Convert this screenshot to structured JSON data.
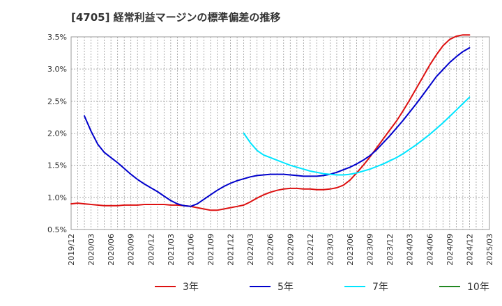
{
  "title": "[4705]  経常利益マージンの標準偏差の推移",
  "chart_data": {
    "type": "line",
    "title": "[4705]  経常利益マージンの標準偏差の推移",
    "xlabel": "",
    "ylabel": "",
    "ylim": [
      0.5,
      3.5
    ],
    "yticks": [
      "0.5%",
      "1.0%",
      "1.5%",
      "2.0%",
      "2.5%",
      "3.0%",
      "3.5%"
    ],
    "xticks": [
      "2019/12",
      "2020/03",
      "2020/06",
      "2020/09",
      "2020/12",
      "2021/03",
      "2021/06",
      "2021/09",
      "2021/12",
      "2022/03",
      "2022/06",
      "2022/09",
      "2022/12",
      "2023/03",
      "2023/06",
      "2023/09",
      "2023/12",
      "2024/03",
      "2024/06",
      "2024/09",
      "2024/12",
      "2025/03"
    ],
    "grid": true,
    "legend_position": "bottom",
    "series": [
      {
        "name": "3年",
        "color": "#dd1111",
        "x": [
          "2019/12",
          "2020/01",
          "2020/02",
          "2020/03",
          "2020/04",
          "2020/05",
          "2020/06",
          "2020/07",
          "2020/08",
          "2020/09",
          "2020/10",
          "2020/11",
          "2020/12",
          "2021/01",
          "2021/02",
          "2021/03",
          "2021/04",
          "2021/05",
          "2021/06",
          "2021/07",
          "2021/08",
          "2021/09",
          "2021/10",
          "2021/11",
          "2021/12",
          "2022/01",
          "2022/02",
          "2022/03",
          "2022/04",
          "2022/05",
          "2022/06",
          "2022/07",
          "2022/08",
          "2022/09",
          "2022/10",
          "2022/11",
          "2022/12",
          "2023/01",
          "2023/02",
          "2023/03",
          "2023/04",
          "2023/05",
          "2023/06",
          "2023/07",
          "2023/08",
          "2023/09",
          "2023/10",
          "2023/11",
          "2023/12",
          "2024/01",
          "2024/02",
          "2024/03",
          "2024/04",
          "2024/05",
          "2024/06",
          "2024/07",
          "2024/08",
          "2024/09",
          "2024/10",
          "2024/11",
          "2024/12"
        ],
        "values": [
          0.9,
          0.91,
          0.9,
          0.89,
          0.88,
          0.87,
          0.87,
          0.87,
          0.88,
          0.88,
          0.88,
          0.89,
          0.89,
          0.89,
          0.89,
          0.88,
          0.88,
          0.87,
          0.86,
          0.84,
          0.82,
          0.8,
          0.8,
          0.82,
          0.84,
          0.86,
          0.88,
          0.93,
          0.99,
          1.04,
          1.08,
          1.11,
          1.13,
          1.14,
          1.14,
          1.13,
          1.13,
          1.12,
          1.12,
          1.13,
          1.15,
          1.19,
          1.27,
          1.38,
          1.5,
          1.63,
          1.77,
          1.91,
          2.05,
          2.19,
          2.35,
          2.52,
          2.7,
          2.88,
          3.06,
          3.22,
          3.36,
          3.46,
          3.51,
          3.53,
          3.53
        ]
      },
      {
        "name": "5年",
        "color": "#0000cc",
        "x": [
          "2020/02",
          "2020/03",
          "2020/04",
          "2020/05",
          "2020/06",
          "2020/07",
          "2020/08",
          "2020/09",
          "2020/10",
          "2020/11",
          "2020/12",
          "2021/01",
          "2021/02",
          "2021/03",
          "2021/04",
          "2021/05",
          "2021/06",
          "2021/07",
          "2021/08",
          "2021/09",
          "2021/10",
          "2021/11",
          "2021/12",
          "2022/01",
          "2022/02",
          "2022/03",
          "2022/04",
          "2022/05",
          "2022/06",
          "2022/07",
          "2022/08",
          "2022/09",
          "2022/10",
          "2022/11",
          "2022/12",
          "2023/01",
          "2023/02",
          "2023/03",
          "2023/04",
          "2023/05",
          "2023/06",
          "2023/07",
          "2023/08",
          "2023/09",
          "2023/10",
          "2023/11",
          "2023/12",
          "2024/01",
          "2024/02",
          "2024/03",
          "2024/04",
          "2024/05",
          "2024/06",
          "2024/07",
          "2024/08",
          "2024/09",
          "2024/10",
          "2024/11",
          "2024/12"
        ],
        "values": [
          2.27,
          2.03,
          1.83,
          1.7,
          1.62,
          1.54,
          1.45,
          1.36,
          1.28,
          1.21,
          1.15,
          1.09,
          1.02,
          0.95,
          0.9,
          0.87,
          0.86,
          0.9,
          0.97,
          1.04,
          1.11,
          1.17,
          1.22,
          1.26,
          1.29,
          1.32,
          1.34,
          1.35,
          1.36,
          1.36,
          1.36,
          1.35,
          1.34,
          1.33,
          1.33,
          1.33,
          1.34,
          1.36,
          1.39,
          1.43,
          1.47,
          1.52,
          1.58,
          1.65,
          1.74,
          1.85,
          1.96,
          2.08,
          2.2,
          2.33,
          2.46,
          2.6,
          2.74,
          2.88,
          2.99,
          3.1,
          3.19,
          3.27,
          3.33
        ]
      },
      {
        "name": "7年",
        "color": "#00e5ff",
        "x": [
          "2022/02",
          "2022/03",
          "2022/04",
          "2022/05",
          "2022/06",
          "2022/07",
          "2022/08",
          "2022/09",
          "2022/10",
          "2022/11",
          "2022/12",
          "2023/01",
          "2023/02",
          "2023/03",
          "2023/04",
          "2023/05",
          "2023/06",
          "2023/07",
          "2023/08",
          "2023/09",
          "2023/10",
          "2023/11",
          "2023/12",
          "2024/01",
          "2024/02",
          "2024/03",
          "2024/04",
          "2024/05",
          "2024/06",
          "2024/07",
          "2024/08",
          "2024/09",
          "2024/10",
          "2024/11",
          "2024/12"
        ],
        "values": [
          2.0,
          1.85,
          1.73,
          1.66,
          1.62,
          1.58,
          1.54,
          1.5,
          1.47,
          1.44,
          1.41,
          1.39,
          1.37,
          1.36,
          1.35,
          1.35,
          1.36,
          1.38,
          1.41,
          1.44,
          1.48,
          1.52,
          1.57,
          1.62,
          1.68,
          1.75,
          1.82,
          1.9,
          1.98,
          2.07,
          2.16,
          2.26,
          2.36,
          2.46,
          2.56
        ]
      },
      {
        "name": "10年",
        "color": "#228822",
        "x": [],
        "values": []
      }
    ]
  }
}
